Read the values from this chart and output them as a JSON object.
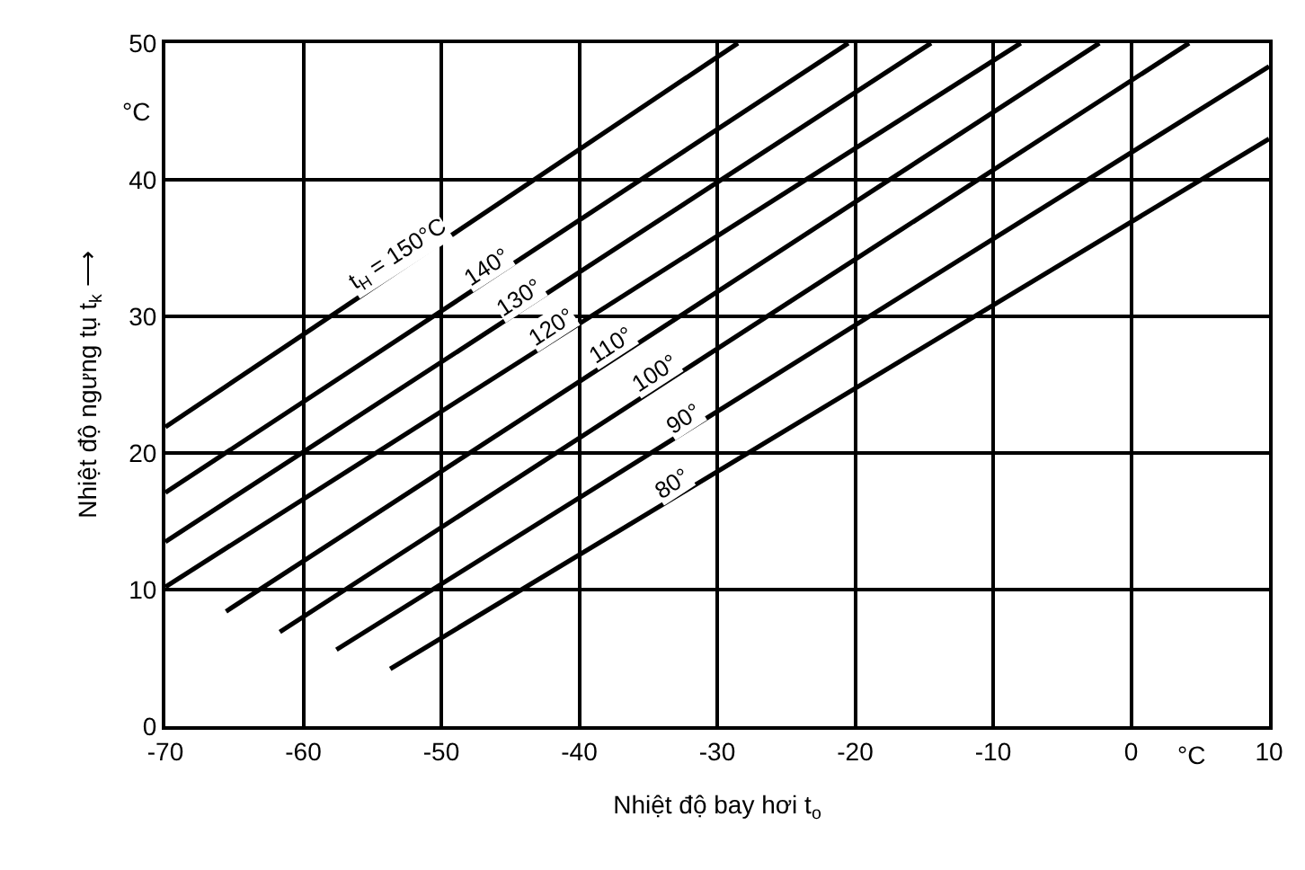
{
  "chart_data": {
    "type": "line",
    "xlabel": "Nhiệt độ bay hơi t$_{o}$",
    "ylabel": "Nhiệt độ ngưng tụ t$_{k}$ ⟶",
    "xlim": [
      -70,
      10
    ],
    "ylim": [
      0,
      50
    ],
    "xticks": [
      -70,
      -60,
      -50,
      -40,
      -30,
      -20,
      -10,
      0,
      10
    ],
    "yticks": [
      0,
      10,
      20,
      30,
      40,
      50
    ],
    "annotations": [
      "°C",
      "°C"
    ],
    "grid": true,
    "legend": false,
    "marker": "none",
    "line_style": "solid",
    "series": [
      {
        "name": "t$_{H}$ = 150°C",
        "color": "#000000",
        "x": [
          -70,
          -28.5
        ],
        "values": [
          21.9,
          50
        ]
      },
      {
        "name": "140°",
        "color": "#000000",
        "x": [
          -70,
          -20.5
        ],
        "values": [
          17.1,
          50
        ]
      },
      {
        "name": "130°",
        "color": "#000000",
        "x": [
          -70,
          -14.5
        ],
        "values": [
          13.5,
          50
        ]
      },
      {
        "name": "120°",
        "color": "#000000",
        "x": [
          -70,
          -8
        ],
        "values": [
          10.2,
          50
        ]
      },
      {
        "name": "110°",
        "color": "#000000",
        "x": [
          -65.6,
          -2.3
        ],
        "values": [
          8.4,
          50
        ]
      },
      {
        "name": "100°",
        "color": "#000000",
        "x": [
          -61.7,
          4.2
        ],
        "values": [
          6.9,
          50
        ]
      },
      {
        "name": "90°",
        "color": "#000000",
        "x": [
          -57.6,
          10
        ],
        "values": [
          5.6,
          48.3
        ]
      },
      {
        "name": "80°",
        "color": "#000000",
        "x": [
          -53.7,
          10
        ],
        "values": [
          4.2,
          43
        ]
      }
    ]
  }
}
